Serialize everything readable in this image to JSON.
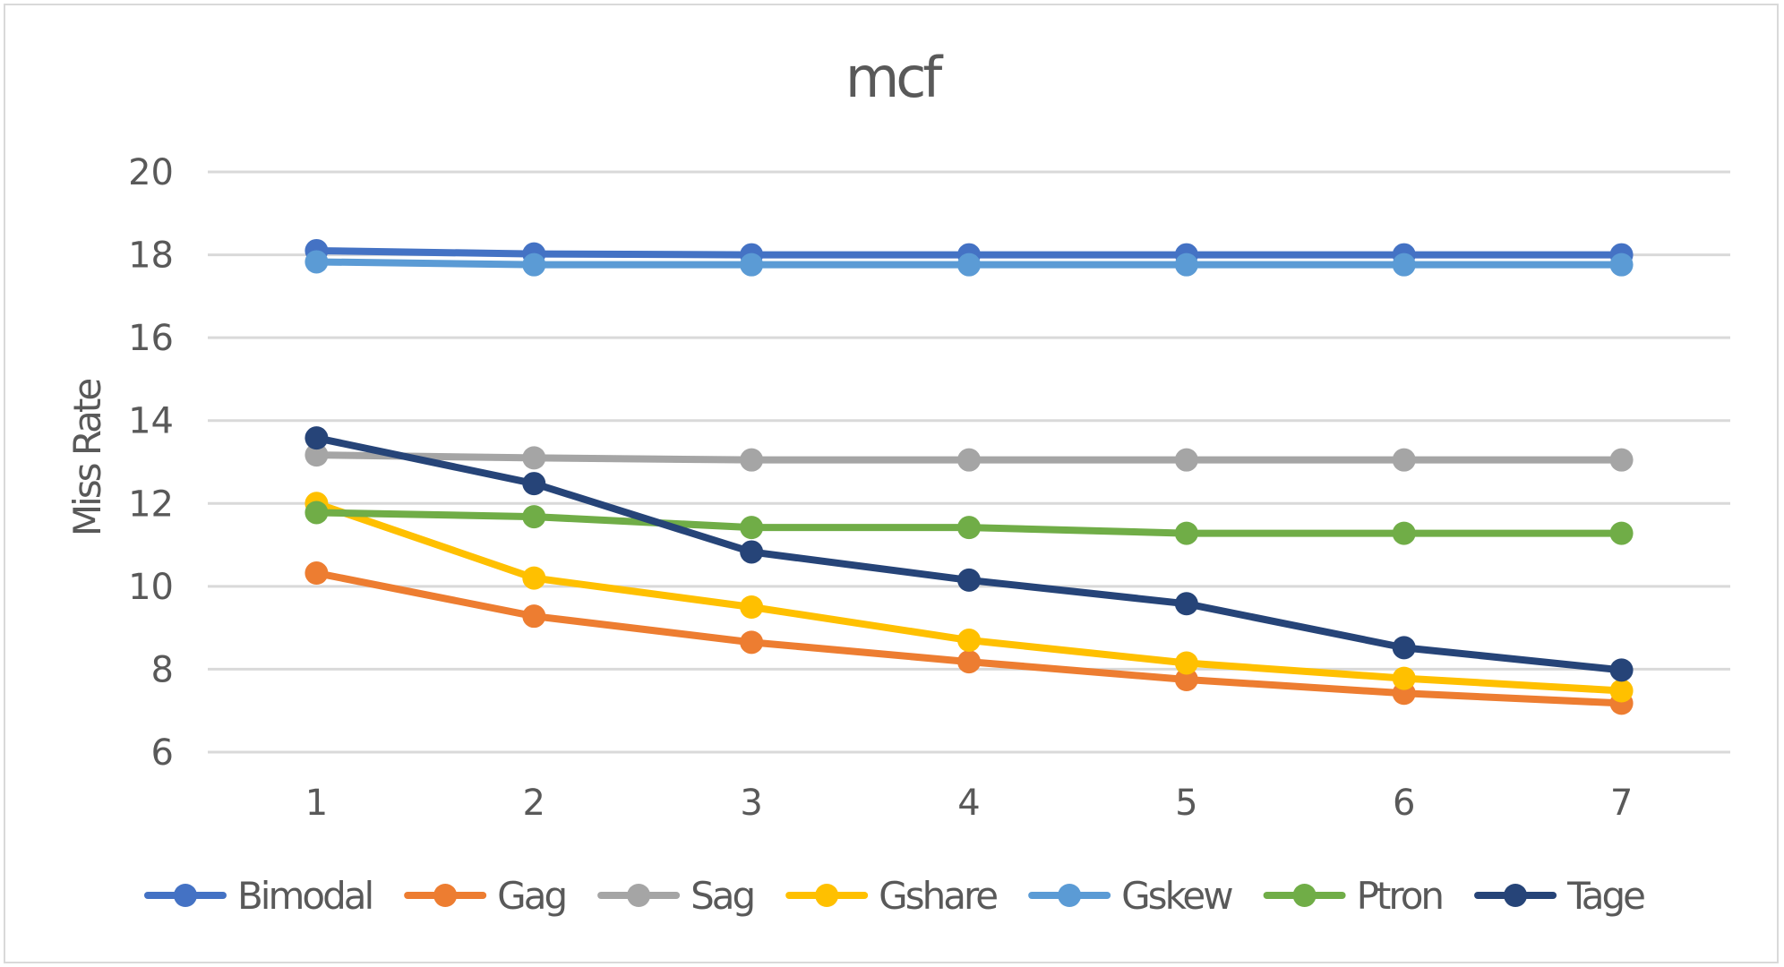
{
  "chart_data": {
    "type": "line",
    "title": "mcf",
    "xlabel": "",
    "ylabel": "Miss Rate",
    "x": [
      1,
      2,
      3,
      4,
      5,
      6,
      7
    ],
    "ylim": [
      6,
      20
    ],
    "yticks": [
      6,
      8,
      10,
      12,
      14,
      16,
      18,
      20
    ],
    "grid": true,
    "legend_position": "bottom",
    "series": [
      {
        "name": "Bimodal",
        "color": "#4472c4",
        "values": [
          18.1,
          18.02,
          18.0,
          18.0,
          18.0,
          18.0,
          18.0
        ]
      },
      {
        "name": "Gag",
        "color": "#ed7d31",
        "values": [
          10.32,
          9.28,
          8.65,
          8.18,
          7.75,
          7.42,
          7.18
        ]
      },
      {
        "name": "Sag",
        "color": "#a5a5a5",
        "values": [
          13.17,
          13.1,
          13.05,
          13.05,
          13.05,
          13.05,
          13.05
        ]
      },
      {
        "name": "Gshare",
        "color": "#ffc000",
        "values": [
          12.0,
          10.2,
          9.5,
          8.7,
          8.15,
          7.78,
          7.48
        ]
      },
      {
        "name": "Gskew",
        "color": "#5b9bd5",
        "values": [
          17.83,
          17.76,
          17.76,
          17.76,
          17.76,
          17.76,
          17.76
        ]
      },
      {
        "name": "Ptron",
        "color": "#70ad47",
        "values": [
          11.78,
          11.68,
          11.42,
          11.42,
          11.28,
          11.28,
          11.28
        ]
      },
      {
        "name": "Tage",
        "color": "#264478",
        "values": [
          13.58,
          12.48,
          10.83,
          10.15,
          9.58,
          8.52,
          7.98
        ]
      }
    ]
  }
}
